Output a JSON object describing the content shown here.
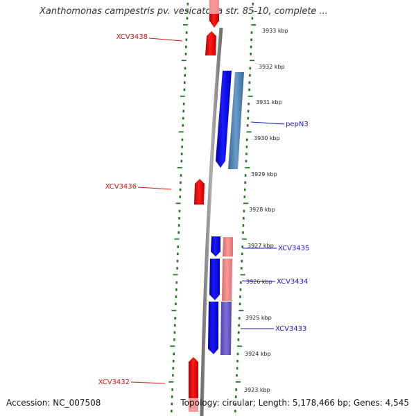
{
  "title": "Xanthomonas campestris pv. vesicatoria str. 85-10, complete ...",
  "footer": {
    "accession": "Accession: NC_007508",
    "topology": "Topology: circular; Length: 5,178,466 bp; Genes: 4,545"
  },
  "kbp_ticks": [
    "3933 kbp",
    "3932 kbp",
    "3931 kbp",
    "3930 kbp",
    "3929 kbp",
    "3928 kbp",
    "3927 kbp",
    "3926 kbp",
    "3925 kbp",
    "3924 kbp",
    "3923 kbp"
  ],
  "gene_labels": {
    "xcv3438": "XCV3438",
    "xcv3436": "XCV3436",
    "xcv3432": "XCV3432",
    "pepn3": "pepN3",
    "xcv3435": "XCV3435",
    "xcv3434": "XCV3434",
    "xcv3433": "XCV3433"
  },
  "colors": {
    "forward_cds": "#ff0000",
    "reverse_cds": "#0000ff",
    "backbone": "#888888",
    "ruler_ticks": "#1f7a1f",
    "rna_light_red": "#f08080",
    "steel_blue": "#4a80b4",
    "purple": "#7060c8"
  }
}
